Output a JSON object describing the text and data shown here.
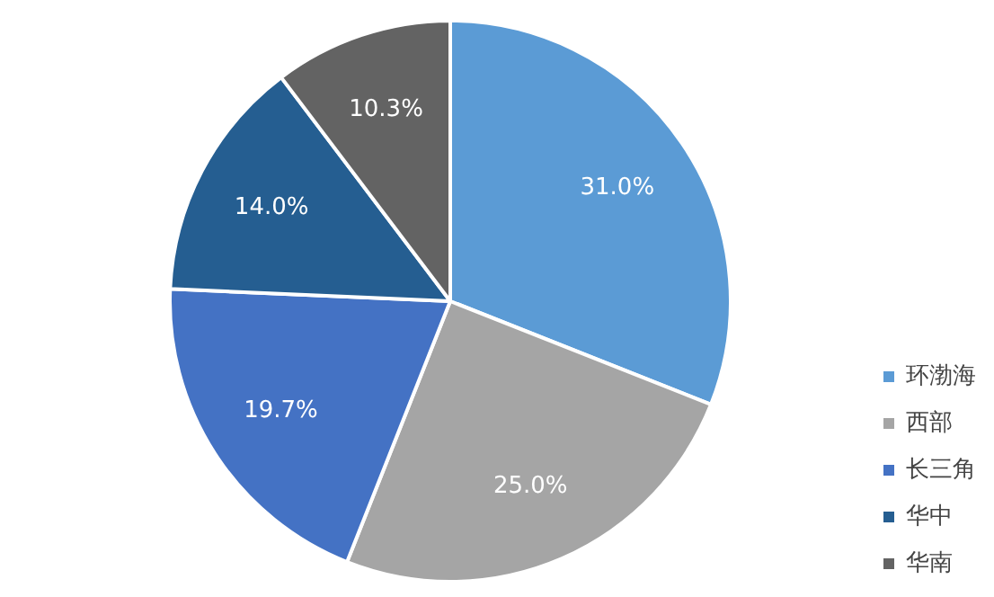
{
  "chart_data": {
    "type": "pie",
    "categories": [
      "环渤海",
      "西部",
      "长三角",
      "华中",
      "华南"
    ],
    "values": [
      31.0,
      25.0,
      19.7,
      14.0,
      10.3
    ],
    "colors": [
      "#5b9bd5",
      "#a5a5a5",
      "#4472c4",
      "#255e91",
      "#636363"
    ],
    "value_labels": [
      "31.0%",
      "25.0%",
      "19.7%",
      "14.0%",
      "10.3%"
    ],
    "legend": "bottom right"
  }
}
